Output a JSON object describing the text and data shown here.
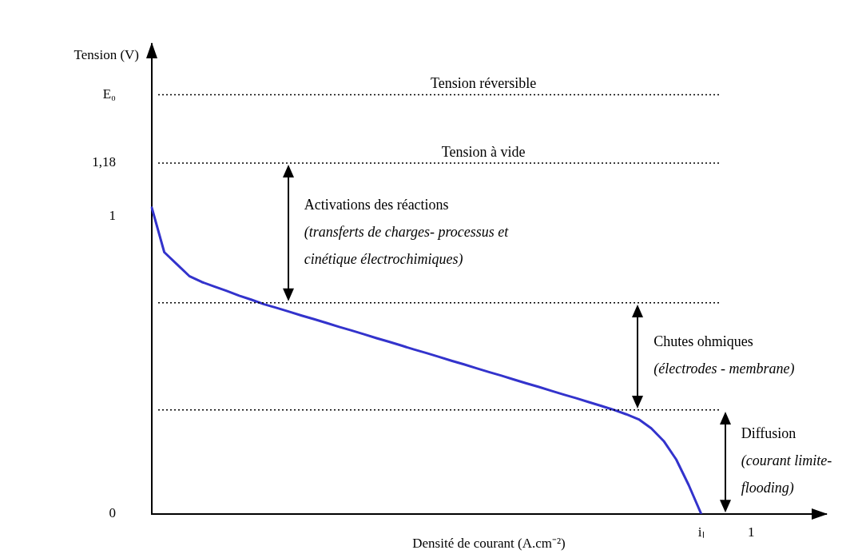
{
  "chart_data": {
    "type": "line",
    "xlabel": "Densité de courant (A.cm⁻²)",
    "ylabel": "Tension (V)",
    "categories": [
      null,
      null,
      null,
      null,
      null,
      null,
      null,
      null,
      null,
      null,
      null,
      null,
      null,
      null,
      null,
      null,
      null,
      null,
      null,
      null,
      null,
      null,
      null,
      null,
      null,
      null,
      null,
      null,
      null,
      null,
      null,
      null,
      null,
      null,
      null,
      null,
      null,
      null,
      null,
      null,
      null,
      null,
      null,
      null,
      "iₗ",
      null,
      null,
      null,
      "1",
      null,
      null,
      null,
      null,
      null,
      null
    ],
    "series": [
      {
        "color": "#3333cc",
        "values": [
          1.03,
          0.88,
          0.84,
          0.8,
          0.78,
          0.765,
          0.75,
          0.734,
          0.72,
          0.705,
          0.693,
          0.68,
          0.667,
          0.655,
          0.642,
          0.629,
          0.617,
          0.604,
          0.591,
          0.579,
          0.566,
          0.553,
          0.541,
          0.528,
          0.515,
          0.503,
          0.49,
          0.477,
          0.465,
          0.452,
          0.439,
          0.427,
          0.414,
          0.401,
          0.389,
          0.376,
          0.363,
          0.35,
          0.335,
          0.318,
          0.288,
          0.245,
          0.183,
          0.097,
          0,
          null,
          null,
          null,
          null,
          null,
          null,
          null,
          null,
          null,
          null
        ]
      }
    ],
    "ylim": [
      0,
      1.58
    ],
    "yticks": [
      0,
      1,
      {
        "value": 1.18,
        "label": "1,18"
      },
      {
        "value": 1.41,
        "label": "E₀"
      }
    ],
    "grid": false,
    "legend": false,
    "marker": "none",
    "line_style": "solid",
    "ref_lines": [
      {
        "axis": "y",
        "value": 1.41,
        "label": "Tension réversible",
        "line_style": "dotted",
        "color": "#000000"
      },
      {
        "axis": "y",
        "value": 1.18,
        "label": "Tension à vide",
        "line_style": "dotted",
        "color": "#000000"
      },
      {
        "axis": "y",
        "value": 0.71,
        "line_style": "dotted",
        "color": "#000000"
      },
      {
        "axis": "y",
        "value": 0.35,
        "line_style": "dotted",
        "color": "#000000"
      }
    ],
    "annotations": [
      "Activations des réactions\n(transferts de charges- processus et\ncinétique électrochimiques)",
      "Chutes ohmiques\n(électrodes - membrane)",
      "Diffusion\n(courant limite-\nflooding)"
    ]
  }
}
